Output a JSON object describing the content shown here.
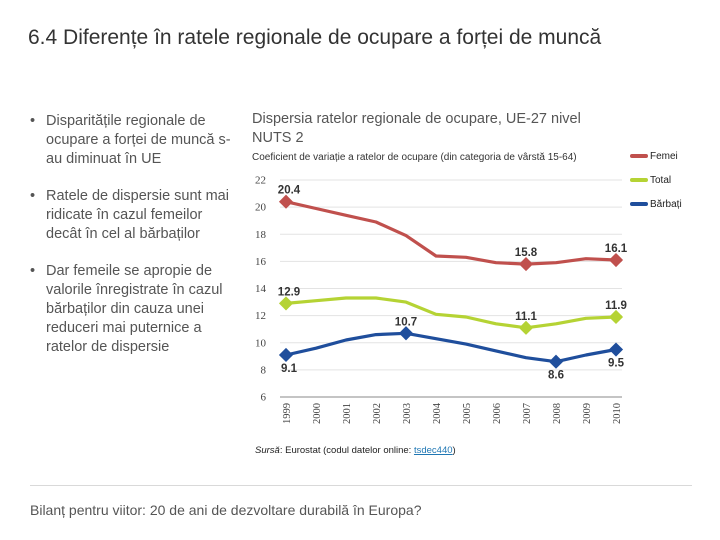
{
  "slide": {
    "title": "6.4 Diferențe în ratele regionale de ocupare a forței de muncă",
    "bullets": [
      "Disparitățile regionale de ocupare a forței de muncă s-au diminuat în UE",
      "Ratele de dispersie sunt mai ridicate în cazul femeilor decât în cel al bărbaților",
      "Dar femeile se apropie de valorile înregistrate în cazul bărbaților din cauza unei reduceri mai puternice a ratelor de dispersie"
    ],
    "footer": "Bilanț pentru viitor: 20 de ani de dezvoltare durabilă în Europa?"
  },
  "source": {
    "label": "Sursă",
    "text": ": Eurostat (codul datelor online: ",
    "code": "tsdec440",
    "close": ")"
  },
  "chart_data": {
    "type": "line",
    "title": "Dispersia ratelor regionale de ocupare, UE-27 nivel NUTS 2",
    "subtitle": "Coeficient de variație a ratelor de ocupare (din categoria de vârstă 15-64)",
    "xlabel": "",
    "ylabel": "",
    "ylim": [
      6,
      22
    ],
    "yticks": [
      "6",
      "8",
      "10",
      "12",
      "14",
      "16",
      "18",
      "20",
      "22"
    ],
    "x": [
      "1999",
      "2000",
      "2001",
      "2002",
      "2003",
      "2004",
      "2005",
      "2006",
      "2007",
      "2008",
      "2009",
      "2010"
    ],
    "grid": true,
    "legend_position": "right",
    "series": [
      {
        "name": "Femei",
        "color": "#c0504d",
        "values": [
          20.4,
          19.9,
          19.4,
          18.9,
          17.9,
          16.4,
          16.3,
          15.9,
          15.8,
          15.9,
          16.2,
          16.1
        ],
        "labels": [
          {
            "index": 0,
            "text": "20.4"
          },
          {
            "index": 8,
            "text": "15.8"
          },
          {
            "index": 11,
            "text": "16.1"
          }
        ]
      },
      {
        "name": "Total",
        "color": "#b5d334",
        "values": [
          12.9,
          13.1,
          13.3,
          13.3,
          13.0,
          12.1,
          11.9,
          11.4,
          11.1,
          11.4,
          11.8,
          11.9
        ],
        "labels": [
          {
            "index": 0,
            "text": "12.9"
          },
          {
            "index": 8,
            "text": "11.1"
          },
          {
            "index": 11,
            "text": "11.9"
          }
        ]
      },
      {
        "name": "Bărbați",
        "color": "#1f4e9c",
        "values": [
          9.1,
          9.6,
          10.2,
          10.6,
          10.7,
          10.3,
          9.9,
          9.4,
          8.9,
          8.6,
          9.1,
          9.5
        ],
        "labels": [
          {
            "index": 0,
            "text": "9.1"
          },
          {
            "index": 4,
            "text": "10.7"
          },
          {
            "index": 9,
            "text": "8.6"
          },
          {
            "index": 11,
            "text": "9.5"
          }
        ]
      }
    ]
  }
}
